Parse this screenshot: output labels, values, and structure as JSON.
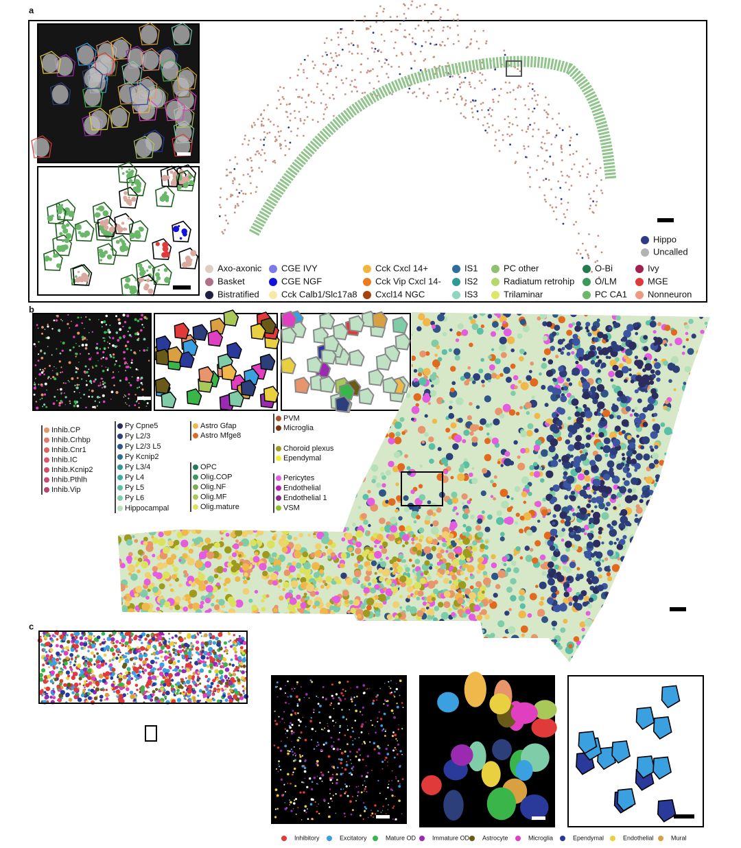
{
  "panels": {
    "a": {
      "label": "a",
      "legend_top": [
        {
          "label": "Hippo",
          "color": "#2e3a87"
        },
        {
          "label": "Uncalled",
          "color": "#b3b3b3"
        }
      ],
      "legend": [
        [
          {
            "label": "Axo-axonic",
            "color": "#dccfc0"
          },
          {
            "label": "Basket",
            "color": "#b0708a"
          },
          {
            "label": "Bistratified",
            "color": "#1f1f45"
          }
        ],
        [
          {
            "label": "CGE IVY",
            "color": "#7b7be8"
          },
          {
            "label": "CGE NGF",
            "color": "#1212e0"
          },
          {
            "label": "Cck Calb1/Slc17a8",
            "color": "#fae8a8"
          }
        ],
        [
          {
            "label": "Cck Cxcl 14+",
            "color": "#f0b640"
          },
          {
            "label": "Cck Vip Cxcl 14-",
            "color": "#ee7a1e"
          },
          {
            "label": "Cxcl14 NGC",
            "color": "#a8400e"
          }
        ],
        [
          {
            "label": "IS1",
            "color": "#2e6d9a"
          },
          {
            "label": "IS2",
            "color": "#2e9a96"
          },
          {
            "label": "IS3",
            "color": "#8ed6be"
          }
        ],
        [
          {
            "label": "PC other",
            "color": "#8fc070"
          },
          {
            "label": "Radiatum retrohip",
            "color": "#b6d66e"
          },
          {
            "label": "Trilaminar",
            "color": "#dde66a"
          }
        ],
        [
          {
            "label": "O-Bi",
            "color": "#237a4e"
          },
          {
            "label": "O/LM",
            "color": "#3a9a5a"
          },
          {
            "label": "PC CA1",
            "color": "#6ab76a"
          }
        ],
        [
          {
            "label": "Ivy",
            "color": "#a0204f"
          },
          {
            "label": "MGE",
            "color": "#e03a3a"
          },
          {
            "label": "Nonneuron",
            "color": "#ee9a80"
          }
        ]
      ]
    },
    "b": {
      "label": "b",
      "legend": [
        [
          {
            "label": "Inhib.CP",
            "color": "#e8956b"
          },
          {
            "label": "Inhib.Crhbp",
            "color": "#e07a6a"
          },
          {
            "label": "Inhib.Cnr1",
            "color": "#d9665e"
          },
          {
            "label": "Inhib.IC",
            "color": "#d85a6a"
          },
          {
            "label": "Inhib.Kcnip2",
            "color": "#d64f6a"
          },
          {
            "label": "Inhib.Pthlh",
            "color": "#c94a76"
          },
          {
            "label": "Inhib.Vip",
            "color": "#b8436b"
          }
        ],
        [
          {
            "label": "Py Cpne5",
            "color": "#2c2d5e"
          },
          {
            "label": "Py L2/3",
            "color": "#2d3f7a"
          },
          {
            "label": "Py L2/3 L5",
            "color": "#2e5586"
          },
          {
            "label": "Py Kcnip2",
            "color": "#2f6d8f"
          },
          {
            "label": "Py L3/4",
            "color": "#329596"
          },
          {
            "label": "Py L4",
            "color": "#3bada0"
          },
          {
            "label": "Py L5",
            "color": "#5bbfa6"
          },
          {
            "label": "Py L6",
            "color": "#7fcca9"
          },
          {
            "label": "Hippocampal",
            "color": "#b6e0b8"
          }
        ],
        [
          {
            "label": "Astro Gfap",
            "color": "#f0b84a"
          },
          {
            "label": "Astro Mfge8",
            "color": "#e26a1f"
          }
        ],
        [
          {
            "label": "OPC",
            "color": "#237a5a"
          },
          {
            "label": "Olig.COP",
            "color": "#3a9a5a"
          },
          {
            "label": "Olig.NF",
            "color": "#78b058"
          },
          {
            "label": "Olig.MF",
            "color": "#a9c85a"
          },
          {
            "label": "Olig.mature",
            "color": "#dde25e"
          }
        ],
        [
          {
            "label": "PVM",
            "color": "#a8522a"
          },
          {
            "label": "Microglia",
            "color": "#7a3316"
          }
        ],
        [
          {
            "label": "Choroid plexus",
            "color": "#9e9a1e"
          },
          {
            "label": "Ependymal",
            "color": "#f2ec2f"
          }
        ],
        [
          {
            "label": "Pericytes",
            "color": "#e45ce0"
          },
          {
            "label": "Endothelial",
            "color": "#b51fae"
          },
          {
            "label": "Endothelial 1",
            "color": "#8a2a8a"
          },
          {
            "label": "VSM",
            "color": "#8fbf2f"
          }
        ]
      ]
    },
    "c": {
      "label": "c",
      "legend": [
        {
          "label": "Inhibitory",
          "color": "#e03a3a"
        },
        {
          "label": "Excitatory",
          "color": "#3aa0e0"
        },
        {
          "label": "Mature OD",
          "color": "#3ab54a"
        },
        {
          "label": "Immature OD",
          "color": "#9a2ab0"
        },
        {
          "label": "Astrocyte",
          "color": "#6a5a1a"
        },
        {
          "label": "Microglia",
          "color": "#e040c0"
        },
        {
          "label": "Ependymal",
          "color": "#2a3a9a"
        },
        {
          "label": "Endothelial",
          "color": "#e8d040"
        },
        {
          "label": "Mural",
          "color": "#d8a040"
        }
      ]
    }
  }
}
